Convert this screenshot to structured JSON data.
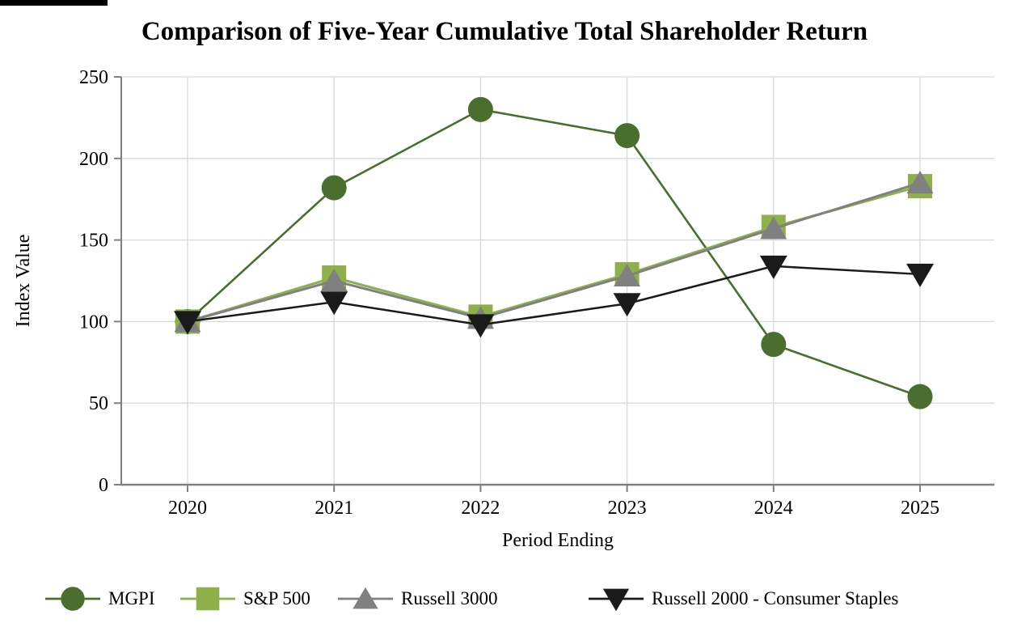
{
  "artifact": {
    "description": "black-screenshot-remnant-bar-top-left"
  },
  "chart_data": {
    "type": "line",
    "title": "Comparison of Five-Year Cumulative Total Shareholder Return",
    "xlabel": "Period Ending",
    "ylabel": "Index Value",
    "categories": [
      "2020",
      "2021",
      "2022",
      "2023",
      "2024",
      "2025"
    ],
    "series": [
      {
        "name": "MGPI",
        "marker": "circle",
        "color": "#4a6e2d",
        "values": [
          100,
          182,
          230,
          214,
          86,
          54
        ]
      },
      {
        "name": "S&P 500",
        "marker": "square",
        "color": "#8db04b",
        "values": [
          100,
          127,
          103,
          129,
          158,
          183
        ]
      },
      {
        "name": "Russell 3000",
        "marker": "triangle-up",
        "color": "#808080",
        "values": [
          100,
          125,
          102,
          128,
          157,
          185
        ]
      },
      {
        "name": "Russell 2000 - Consumer Staples",
        "marker": "triangle-down",
        "color": "#1a1a1a",
        "values": [
          100,
          112,
          98,
          111,
          134,
          129
        ]
      }
    ],
    "ylim": [
      0,
      250
    ],
    "ytick_step": 50,
    "grid": true,
    "legend_position": "bottom",
    "colors": {
      "gridline": "#d9d9d9",
      "axis": "#808080",
      "text": "#000000",
      "background": "#ffffff"
    }
  }
}
